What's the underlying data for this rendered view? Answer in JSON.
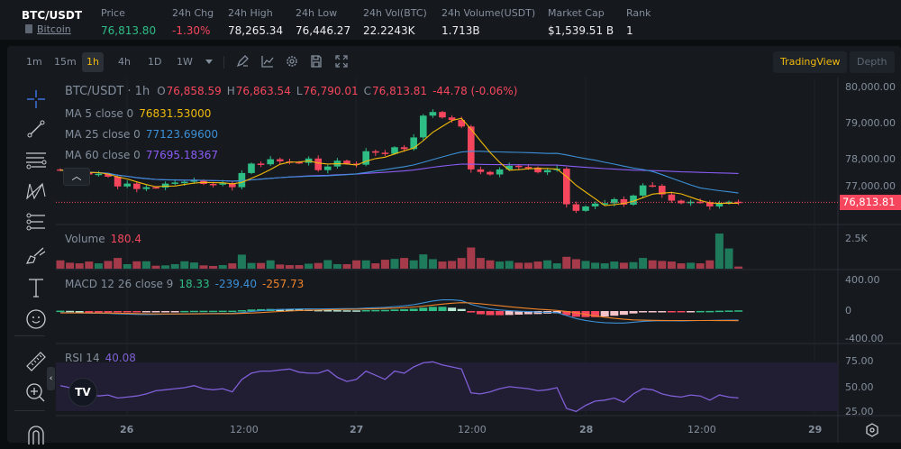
{
  "header": {
    "pair": "BTC/USDT",
    "coin_name": "Bitcoin",
    "stats": [
      {
        "label": "Price",
        "value": "76,813.80",
        "color": "#2ebd85"
      },
      {
        "label": "24h Chg",
        "value": "-1.30%",
        "color": "#f6465d"
      },
      {
        "label": "24h High",
        "value": "78,265.34"
      },
      {
        "label": "24h Low",
        "value": "76,446.27"
      },
      {
        "label": "24h Vol(BTC)",
        "value": "22.2243K"
      },
      {
        "label": "24h Volume(USDT)",
        "value": "1.713B"
      },
      {
        "label": "Market Cap",
        "value": "$1,539.51 B"
      },
      {
        "label": "Rank",
        "value": "1"
      }
    ]
  },
  "toolbar": {
    "intervals": [
      "1m",
      "15m",
      "1h",
      "4h",
      "1D",
      "1W"
    ],
    "active_interval": "1h",
    "icons": [
      "interval-dropdown-icon",
      "draw-icon",
      "indicator-icon",
      "settings-icon",
      "save-icon",
      "fullscreen-icon"
    ],
    "views": [
      "TradingView",
      "Depth"
    ],
    "active_view": "TradingView"
  },
  "side_tools": [
    "crosshair-icon",
    "trendline-icon",
    "horizontal-lines-icon",
    "pattern-icon",
    "fib-icon",
    "brush-icon",
    "text-icon",
    "emoji-icon",
    "ruler-icon",
    "zoom-in-icon",
    "magnet-icon"
  ],
  "legend": {
    "title": "BTC/USDT · 1h",
    "o_label": "O",
    "o": "76,858.59",
    "h_label": "H",
    "h": "76,863.54",
    "l_label": "L",
    "l": "76,790.01",
    "c_label": "C",
    "c": "76,813.81",
    "change": "-44.78 (-0.06%)",
    "ma5_label": "MA 5 close 0",
    "ma5": "76831.53000",
    "ma25_label": "MA 25 close 0",
    "ma25": "77123.69600",
    "ma60_label": "MA 60 close 0",
    "ma60": "77695.18367",
    "volume_label": "Volume",
    "volume": "180.4",
    "macd_label": "MACD 12 26 close 9",
    "macd_hist": "18.33",
    "macd_dif": "-239.40",
    "macd_dea": "-257.73",
    "rsi_label": "RSI 14",
    "rsi": "40.08"
  },
  "axes": {
    "price_ticks": [
      "80,000.00",
      "79,000.00",
      "78,000.00",
      "77,000.00"
    ],
    "last_price": "76,813.81",
    "volume_ticks": [
      "2.5K"
    ],
    "macd_ticks": [
      "400.00",
      "0",
      "-400.00"
    ],
    "rsi_ticks": [
      "75.00",
      "50.00",
      "25.00"
    ],
    "time_ticks": [
      "26",
      "12:00",
      "27",
      "12:00",
      "28",
      "12:00",
      "29"
    ]
  },
  "colors": {
    "up": "#2ebd85",
    "down": "#f6465d",
    "ma5": "#f0b90b",
    "ma25": "#3c8fd6",
    "ma60": "#8a5cf5",
    "dif": "#3c8fd6",
    "dea": "#f0832a",
    "rsi": "#7f5fd6",
    "accent": "#f0b90b"
  },
  "logo_text": "TV",
  "chart_data": {
    "type": "candlestick",
    "interval": "1h",
    "first_open": 77720,
    "close": [
      77700,
      77650,
      77620,
      77580,
      77600,
      77520,
      77250,
      77330,
      77180,
      77230,
      77220,
      77330,
      77360,
      77380,
      77420,
      77320,
      77300,
      77340,
      77230,
      77620,
      77880,
      77860,
      78000,
      77940,
      77920,
      77900,
      78020,
      77700,
      77800,
      77960,
      77880,
      77850,
      78220,
      78180,
      78150,
      78330,
      78280,
      78600,
      79200,
      79300,
      79150,
      79080,
      78900,
      77720,
      77650,
      77580,
      77720,
      77820,
      77790,
      77770,
      77640,
      77700,
      77740,
      76760,
      76580,
      76700,
      76780,
      76790,
      76900,
      76750,
      77000,
      77280,
      77270,
      77030,
      76860,
      76790,
      76830,
      76820,
      76700,
      76780,
      76830,
      76813.81
    ],
    "volume": [
      700,
      500,
      450,
      600,
      450,
      650,
      900,
      380,
      620,
      620,
      250,
      280,
      380,
      620,
      520,
      280,
      230,
      300,
      450,
      1180,
      480,
      480,
      700,
      350,
      300,
      300,
      420,
      480,
      720,
      380,
      380,
      700,
      700,
      450,
      750,
      820,
      900,
      700,
      1200,
      800,
      600,
      650,
      900,
      1780,
      900,
      700,
      600,
      650,
      500,
      500,
      600,
      700,
      450,
      1000,
      800,
      650,
      500,
      450,
      600,
      500,
      550,
      900,
      700,
      650,
      600,
      450,
      500,
      450,
      700,
      2950,
      1700,
      180.4
    ],
    "macd_dif": [
      -40,
      -45,
      -50,
      -55,
      -58,
      -62,
      -75,
      -80,
      -90,
      -92,
      -90,
      -85,
      -80,
      -75,
      -70,
      -68,
      -66,
      -62,
      -60,
      -40,
      -10,
      10,
      30,
      40,
      50,
      55,
      60,
      55,
      58,
      62,
      64,
      66,
      80,
      90,
      100,
      120,
      140,
      170,
      220,
      270,
      300,
      300,
      280,
      180,
      110,
      60,
      30,
      10,
      -5,
      -15,
      -30,
      -35,
      -40,
      -120,
      -200,
      -250,
      -290,
      -310,
      -320,
      -320,
      -300,
      -275,
      -262,
      -258,
      -260,
      -262,
      -258,
      -252,
      -250,
      -246,
      -242,
      -239.4
    ],
    "macd_dea": [
      -50,
      -50,
      -50,
      -51,
      -52,
      -54,
      -58,
      -62,
      -67,
      -72,
      -76,
      -78,
      -78,
      -78,
      -76,
      -75,
      -73,
      -71,
      -69,
      -63,
      -52,
      -40,
      -26,
      -13,
      0,
      11,
      21,
      28,
      34,
      40,
      45,
      49,
      55,
      62,
      70,
      80,
      92,
      108,
      130,
      158,
      186,
      209,
      225,
      218,
      196,
      169,
      141,
      115,
      91,
      70,
      50,
      33,
      18,
      -10,
      -48,
      -88,
      -128,
      -164,
      -195,
      -220,
      -236,
      -244,
      -248,
      -250,
      -252,
      -254,
      -254,
      -254,
      -253,
      -255,
      -256,
      -257.73
    ],
    "rsi": [
      52,
      50,
      47,
      45,
      42,
      43,
      40,
      41,
      42,
      44,
      47,
      48,
      49,
      50,
      52,
      49,
      48,
      49,
      46,
      58,
      64,
      66,
      66,
      67,
      68,
      65,
      64,
      64,
      67,
      60,
      56,
      58,
      66,
      62,
      58,
      66,
      64,
      70,
      74,
      75,
      72,
      70,
      68,
      45,
      44,
      46,
      49,
      51,
      50,
      49,
      47,
      48,
      50,
      30,
      27,
      33,
      37,
      38,
      40,
      36,
      44,
      49,
      48,
      44,
      42,
      41,
      43,
      42,
      38,
      43,
      41,
      40.08
    ]
  }
}
